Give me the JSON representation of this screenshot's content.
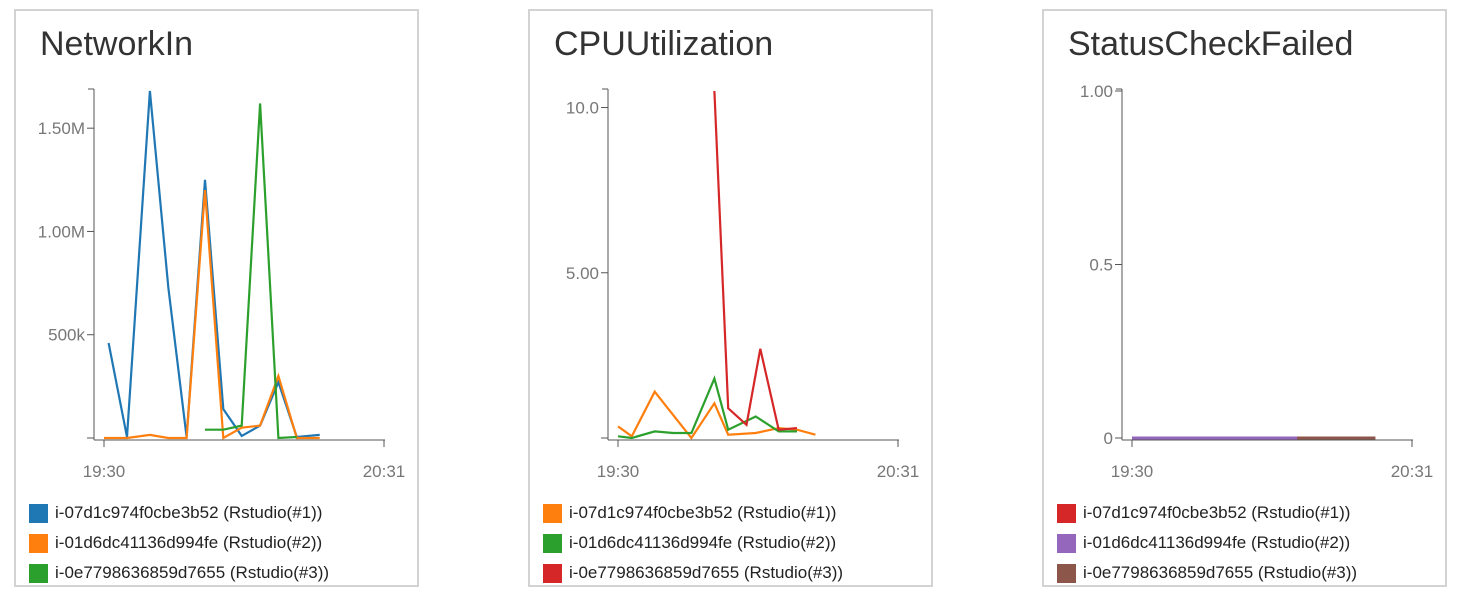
{
  "chart_data": [
    {
      "type": "line",
      "title": "NetworkIn",
      "xlabel": "",
      "ylabel": "",
      "x_ticks": [
        "19:30",
        "20:31"
      ],
      "y_ticks": [
        {
          "value": 500000,
          "label": "500k"
        },
        {
          "value": 1000000,
          "label": "1.00M"
        },
        {
          "value": 1500000,
          "label": "1.50M"
        }
      ],
      "ylim": [
        0,
        1680000
      ],
      "legend_position": "bottom",
      "series": [
        {
          "name": "i-07d1c974f0cbe3b52 (Rstudio(#1))",
          "color": "#1f77b4",
          "points": [
            [
              "19:31",
              460000
            ],
            [
              "19:35",
              5000
            ],
            [
              "19:40",
              1680000
            ],
            [
              "19:44",
              730000
            ],
            [
              "19:48",
              5000
            ],
            [
              "19:52",
              1250000
            ],
            [
              "19:56",
              140000
            ],
            [
              "20:00",
              10000
            ],
            [
              "20:04",
              60000
            ],
            [
              "20:08",
              270000
            ],
            [
              "20:12",
              5000
            ],
            [
              "20:17",
              15000
            ]
          ]
        },
        {
          "name": "i-01d6dc41136d994fe (Rstudio(#2))",
          "color": "#ff7f0e",
          "points": [
            [
              "19:30",
              0
            ],
            [
              "19:35",
              0
            ],
            [
              "19:40",
              15000
            ],
            [
              "19:44",
              0
            ],
            [
              "19:48",
              0
            ],
            [
              "19:52",
              1200000
            ],
            [
              "19:56",
              0
            ],
            [
              "20:00",
              50000
            ],
            [
              "20:04",
              60000
            ],
            [
              "20:08",
              300000
            ],
            [
              "20:12",
              0
            ],
            [
              "20:17",
              0
            ]
          ]
        },
        {
          "name": "i-0e7798636859d7655 (Rstudio(#3))",
          "color": "#2ca02c",
          "points": [
            [
              "19:52",
              40000
            ],
            [
              "19:56",
              40000
            ],
            [
              "20:00",
              60000
            ],
            [
              "20:04",
              1620000
            ],
            [
              "20:08",
              0
            ],
            [
              "20:12",
              5000
            ]
          ]
        }
      ]
    },
    {
      "type": "line",
      "title": "CPUUtilization",
      "xlabel": "",
      "ylabel": "",
      "x_ticks": [
        "19:30",
        "20:31"
      ],
      "y_ticks": [
        {
          "value": 5,
          "label": "5.00"
        },
        {
          "value": 10,
          "label": "10.0"
        }
      ],
      "ylim": [
        0,
        10.5
      ],
      "legend_position": "bottom",
      "series": [
        {
          "name": "i-07d1c974f0cbe3b52 (Rstudio(#1))",
          "color": "#ff7f0e",
          "points": [
            [
              "19:30",
              0.35
            ],
            [
              "19:33",
              0.05
            ],
            [
              "19:38",
              1.4
            ],
            [
              "19:42",
              0.7
            ],
            [
              "19:46",
              0.0
            ],
            [
              "19:51",
              1.05
            ],
            [
              "19:54",
              0.1
            ],
            [
              "20:00",
              0.15
            ],
            [
              "20:05",
              0.3
            ],
            [
              "20:09",
              0.25
            ],
            [
              "20:13",
              0.1
            ]
          ]
        },
        {
          "name": "i-01d6dc41136d994fe (Rstudio(#2))",
          "color": "#2ca02c",
          "points": [
            [
              "19:30",
              0.05
            ],
            [
              "19:33",
              0.0
            ],
            [
              "19:38",
              0.2
            ],
            [
              "19:42",
              0.15
            ],
            [
              "19:46",
              0.15
            ],
            [
              "19:51",
              1.8
            ],
            [
              "19:54",
              0.25
            ],
            [
              "20:00",
              0.65
            ],
            [
              "20:05",
              0.2
            ],
            [
              "20:09",
              0.2
            ]
          ]
        },
        {
          "name": "i-0e7798636859d7655 (Rstudio(#3))",
          "color": "#d62728",
          "points": [
            [
              "19:51",
              10.5
            ],
            [
              "19:54",
              0.9
            ],
            [
              "19:58",
              0.4
            ],
            [
              "20:01",
              2.7
            ],
            [
              "20:05",
              0.25
            ],
            [
              "20:09",
              0.3
            ]
          ]
        }
      ]
    },
    {
      "type": "line",
      "title": "StatusCheckFailed",
      "xlabel": "",
      "ylabel": "",
      "x_ticks": [
        "19:30",
        "20:31"
      ],
      "y_ticks": [
        {
          "value": 0,
          "label": "0"
        },
        {
          "value": 0.5,
          "label": "0.5"
        },
        {
          "value": 1,
          "label": "1.00"
        }
      ],
      "ylim": [
        0,
        1
      ],
      "legend_position": "bottom",
      "series": [
        {
          "name": "i-07d1c974f0cbe3b52 (Rstudio(#1))",
          "color": "#d62728",
          "points": [
            [
              "19:30",
              0
            ],
            [
              "20:23",
              0
            ]
          ]
        },
        {
          "name": "i-01d6dc41136d994fe (Rstudio(#2))",
          "color": "#9467bd",
          "points": [
            [
              "19:30",
              0
            ],
            [
              "20:06",
              0
            ]
          ]
        },
        {
          "name": "i-0e7798636859d7655 (Rstudio(#3))",
          "color": "#8c564b",
          "points": [
            [
              "20:06",
              0
            ],
            [
              "20:23",
              0
            ]
          ]
        }
      ]
    }
  ]
}
